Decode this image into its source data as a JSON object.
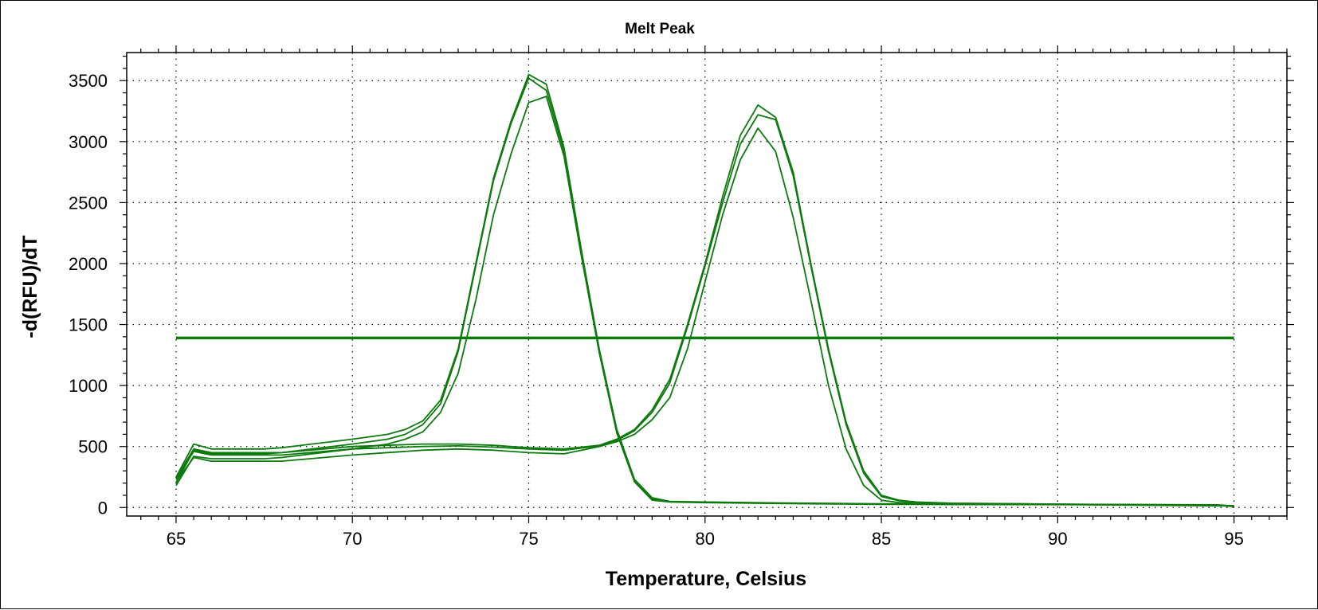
{
  "chart_data": {
    "type": "line",
    "title": "Melt Peak",
    "xlabel": "Temperature, Celsius",
    "ylabel": "-d(RFU)/dT",
    "xlim": [
      63.6,
      96.5
    ],
    "ylim": [
      -70,
      3730
    ],
    "xticks": [
      65,
      70,
      75,
      80,
      85,
      90,
      95
    ],
    "yticks": [
      0,
      500,
      1000,
      1500,
      2000,
      2500,
      3000,
      3500
    ],
    "grid": true,
    "threshold": 1390,
    "color": "#0c7a0c",
    "series": [
      {
        "x": [
          65,
          65.5,
          66,
          67.5,
          68,
          70,
          71,
          71.5,
          72,
          72.5,
          73,
          73.5,
          74,
          74.5,
          75,
          75.5,
          76,
          76.5,
          77,
          77.5,
          78,
          78.5,
          79,
          80,
          82,
          85,
          88,
          92,
          94.5,
          95
        ],
        "values": [
          250,
          520,
          480,
          480,
          490,
          560,
          600,
          640,
          710,
          880,
          1300,
          2000,
          2700,
          3170,
          3550,
          3470,
          2950,
          2100,
          1300,
          640,
          230,
          80,
          50,
          45,
          38,
          30,
          28,
          25,
          22,
          12
        ]
      },
      {
        "x": [
          65,
          65.5,
          66,
          67.5,
          68,
          70,
          71,
          71.5,
          72,
          72.5,
          73,
          73.5,
          74,
          74.5,
          75,
          75.5,
          76,
          76.5,
          77,
          77.5,
          78,
          78.5,
          79,
          80,
          82,
          85,
          88,
          92,
          94.5,
          95
        ],
        "values": [
          200,
          470,
          440,
          440,
          450,
          520,
          560,
          600,
          680,
          850,
          1280,
          1980,
          2680,
          3150,
          3520,
          3420,
          2920,
          2080,
          1290,
          630,
          220,
          70,
          48,
          42,
          35,
          28,
          26,
          24,
          20,
          10
        ]
      },
      {
        "x": [
          65,
          65.5,
          66,
          67.5,
          68,
          70,
          71,
          71.5,
          72,
          72.5,
          73,
          73.5,
          74,
          74.5,
          75,
          75.5,
          76,
          76.5,
          77,
          77.5,
          78,
          78.5,
          79,
          80,
          82,
          85,
          88,
          92,
          94.5,
          95
        ],
        "values": [
          180,
          420,
          400,
          400,
          410,
          480,
          520,
          560,
          620,
          780,
          1100,
          1700,
          2400,
          2900,
          3320,
          3370,
          2880,
          2050,
          1270,
          610,
          210,
          60,
          45,
          40,
          33,
          26,
          24,
          22,
          18,
          8
        ]
      },
      {
        "x": [
          65,
          65.5,
          66,
          68,
          70,
          72,
          73,
          74,
          75,
          76,
          77,
          77.5,
          78,
          78.5,
          79,
          79.5,
          80,
          80.5,
          81,
          81.5,
          82,
          82.5,
          83,
          83.5,
          84,
          84.5,
          85,
          85.5,
          86,
          87,
          90,
          95
        ],
        "values": [
          240,
          480,
          450,
          450,
          500,
          520,
          520,
          510,
          490,
          480,
          510,
          560,
          640,
          800,
          1050,
          1500,
          2000,
          2550,
          3050,
          3300,
          3200,
          2750,
          2000,
          1300,
          700,
          300,
          100,
          60,
          45,
          35,
          28,
          15
        ]
      },
      {
        "x": [
          65,
          65.5,
          66,
          68,
          70,
          72,
          73,
          74,
          75,
          76,
          77,
          77.5,
          78,
          78.5,
          79,
          79.5,
          80,
          80.5,
          81,
          81.5,
          82,
          82.5,
          83,
          83.5,
          84,
          84.5,
          85,
          85.5,
          86,
          87,
          90,
          95
        ],
        "values": [
          230,
          460,
          430,
          430,
          480,
          500,
          505,
          495,
          480,
          470,
          505,
          550,
          630,
          780,
          1020,
          1480,
          1980,
          2500,
          2980,
          3220,
          3180,
          2720,
          1980,
          1280,
          680,
          280,
          90,
          55,
          42,
          33,
          27,
          14
        ]
      },
      {
        "x": [
          65,
          65.5,
          66,
          68,
          70,
          72,
          73,
          74,
          75,
          76,
          77,
          77.5,
          78,
          78.5,
          79,
          79.5,
          80,
          80.5,
          81,
          81.5,
          82,
          82.5,
          83,
          83.5,
          84,
          84.5,
          85,
          85.5,
          86,
          87,
          90,
          95
        ],
        "values": [
          210,
          410,
          380,
          380,
          430,
          470,
          480,
          470,
          450,
          440,
          500,
          540,
          600,
          720,
          900,
          1300,
          1850,
          2400,
          2850,
          3110,
          2920,
          2380,
          1700,
          1000,
          480,
          180,
          60,
          40,
          35,
          30,
          25,
          12
        ]
      }
    ]
  }
}
